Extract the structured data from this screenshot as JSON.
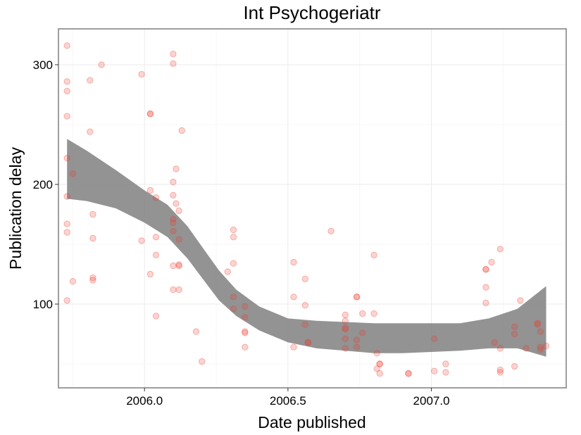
{
  "chart_data": {
    "type": "scatter",
    "title": "Int Psychogeriatr",
    "xlabel": "Date published",
    "ylabel": "Publication delay",
    "xlim": [
      2005.7,
      2007.47
    ],
    "ylim": [
      30,
      330
    ],
    "xticks": [
      2006.0,
      2006.5,
      2007.0
    ],
    "xtick_labels": [
      "2006.0",
      "2006.5",
      "2007.0"
    ],
    "yticks": [
      100,
      200,
      300
    ],
    "ytick_labels": [
      "100",
      "200",
      "300"
    ],
    "grid": true,
    "legend": "none",
    "point_color": "#ef3b2c",
    "smooth_color": "#808080",
    "points": [
      [
        2005.73,
        316
      ],
      [
        2005.73,
        286
      ],
      [
        2005.73,
        278
      ],
      [
        2005.73,
        257
      ],
      [
        2005.73,
        222
      ],
      [
        2005.73,
        190
      ],
      [
        2005.73,
        167
      ],
      [
        2005.73,
        160
      ],
      [
        2005.73,
        103
      ],
      [
        2005.75,
        209
      ],
      [
        2005.75,
        119
      ],
      [
        2005.81,
        287
      ],
      [
        2005.81,
        244
      ],
      [
        2005.82,
        175
      ],
      [
        2005.82,
        155
      ],
      [
        2005.82,
        122
      ],
      [
        2005.82,
        120
      ],
      [
        2005.85,
        300
      ],
      [
        2005.99,
        292
      ],
      [
        2005.99,
        153
      ],
      [
        2006.02,
        259
      ],
      [
        2006.02,
        259
      ],
      [
        2006.02,
        195
      ],
      [
        2006.02,
        125
      ],
      [
        2006.04,
        189
      ],
      [
        2006.04,
        156
      ],
      [
        2006.04,
        141
      ],
      [
        2006.04,
        90
      ],
      [
        2006.1,
        309
      ],
      [
        2006.1,
        301
      ],
      [
        2006.1,
        202
      ],
      [
        2006.1,
        191
      ],
      [
        2006.1,
        171
      ],
      [
        2006.1,
        168
      ],
      [
        2006.1,
        161
      ],
      [
        2006.1,
        132
      ],
      [
        2006.1,
        112
      ],
      [
        2006.11,
        213
      ],
      [
        2006.11,
        184
      ],
      [
        2006.12,
        178
      ],
      [
        2006.12,
        154
      ],
      [
        2006.12,
        133
      ],
      [
        2006.12,
        132
      ],
      [
        2006.12,
        112
      ],
      [
        2006.13,
        245
      ],
      [
        2006.18,
        77
      ],
      [
        2006.2,
        52
      ],
      [
        2006.29,
        127
      ],
      [
        2006.31,
        162
      ],
      [
        2006.31,
        156
      ],
      [
        2006.31,
        134
      ],
      [
        2006.31,
        106
      ],
      [
        2006.31,
        96
      ],
      [
        2006.35,
        98
      ],
      [
        2006.35,
        89
      ],
      [
        2006.35,
        77
      ],
      [
        2006.35,
        76
      ],
      [
        2006.35,
        64
      ],
      [
        2006.52,
        135
      ],
      [
        2006.52,
        106
      ],
      [
        2006.52,
        64
      ],
      [
        2006.56,
        121
      ],
      [
        2006.56,
        99
      ],
      [
        2006.56,
        83
      ],
      [
        2006.57,
        68
      ],
      [
        2006.57,
        68
      ],
      [
        2006.65,
        161
      ],
      [
        2006.7,
        91
      ],
      [
        2006.7,
        86
      ],
      [
        2006.7,
        80
      ],
      [
        2006.7,
        79
      ],
      [
        2006.7,
        71
      ],
      [
        2006.7,
        63
      ],
      [
        2006.74,
        106
      ],
      [
        2006.74,
        106
      ],
      [
        2006.74,
        70
      ],
      [
        2006.74,
        64
      ],
      [
        2006.76,
        92
      ],
      [
        2006.76,
        76
      ],
      [
        2006.8,
        141
      ],
      [
        2006.8,
        92
      ],
      [
        2006.81,
        59
      ],
      [
        2006.81,
        46
      ],
      [
        2006.82,
        50
      ],
      [
        2006.82,
        50
      ],
      [
        2006.82,
        42
      ],
      [
        2006.92,
        42
      ],
      [
        2006.92,
        42
      ],
      [
        2007.01,
        71
      ],
      [
        2007.01,
        44
      ],
      [
        2007.05,
        50
      ],
      [
        2007.05,
        43
      ],
      [
        2007.19,
        129
      ],
      [
        2007.19,
        129
      ],
      [
        2007.19,
        114
      ],
      [
        2007.19,
        101
      ],
      [
        2007.21,
        135
      ],
      [
        2007.22,
        68
      ],
      [
        2007.24,
        146
      ],
      [
        2007.24,
        63
      ],
      [
        2007.24,
        45
      ],
      [
        2007.24,
        43
      ],
      [
        2007.29,
        81
      ],
      [
        2007.29,
        75
      ],
      [
        2007.29,
        48
      ],
      [
        2007.31,
        103
      ],
      [
        2007.33,
        63
      ],
      [
        2007.37,
        84
      ],
      [
        2007.37,
        83
      ],
      [
        2007.38,
        77
      ],
      [
        2007.38,
        64
      ],
      [
        2007.38,
        62
      ],
      [
        2007.4,
        65
      ]
    ],
    "smooth_band": [
      [
        2005.73,
        238,
        188
      ],
      [
        2005.8,
        228,
        186
      ],
      [
        2005.9,
        212,
        180
      ],
      [
        2006.0,
        195,
        168
      ],
      [
        2006.08,
        183,
        156
      ],
      [
        2006.15,
        165,
        138
      ],
      [
        2006.2,
        148,
        122
      ],
      [
        2006.26,
        128,
        103
      ],
      [
        2006.32,
        112,
        90
      ],
      [
        2006.4,
        98,
        78
      ],
      [
        2006.5,
        88,
        68
      ],
      [
        2006.6,
        86,
        63
      ],
      [
        2006.7,
        85,
        61
      ],
      [
        2006.8,
        84,
        59
      ],
      [
        2006.9,
        84,
        59
      ],
      [
        2007.0,
        84,
        60
      ],
      [
        2007.1,
        84,
        61
      ],
      [
        2007.2,
        88,
        63
      ],
      [
        2007.3,
        96,
        63
      ],
      [
        2007.4,
        115,
        56
      ]
    ]
  }
}
